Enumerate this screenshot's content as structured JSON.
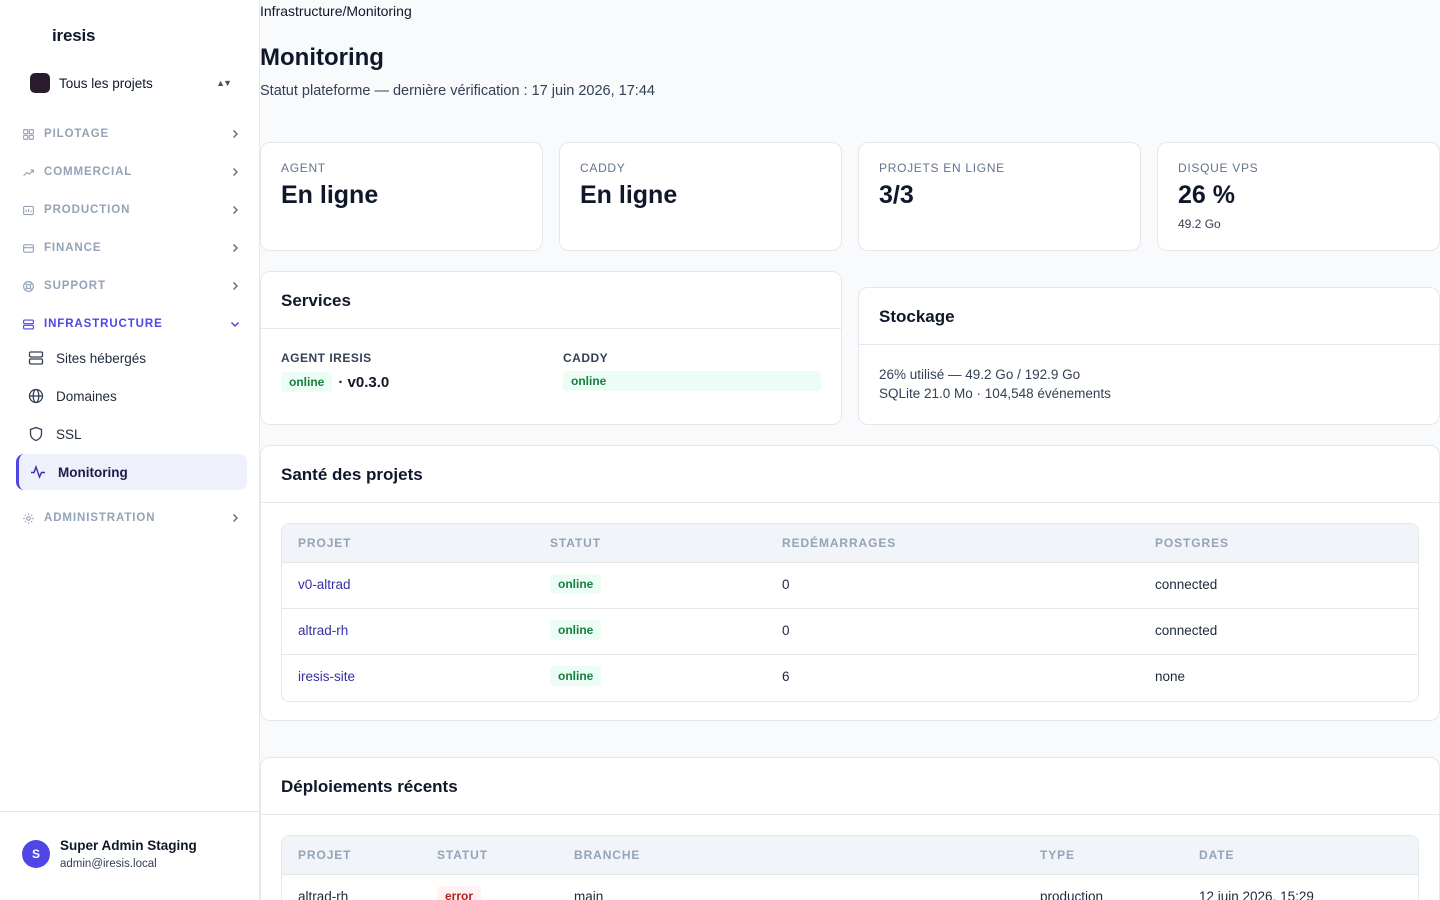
{
  "sidebar": {
    "brand": "iresis",
    "project_switcher": {
      "label": "Tous les projets"
    },
    "groups": [
      {
        "label": "PILOTAGE",
        "icon": "grid-icon"
      },
      {
        "label": "COMMERCIAL",
        "icon": "trend-up-icon"
      },
      {
        "label": "PRODUCTION",
        "icon": "folder-icon"
      },
      {
        "label": "FINANCE",
        "icon": "credit-card-icon"
      },
      {
        "label": "SUPPORT",
        "icon": "lifebuoy-icon"
      },
      {
        "label": "INFRASTRUCTURE",
        "icon": "server-icon",
        "expanded": true
      },
      {
        "label": "ADMINISTRATION",
        "icon": "gear-icon"
      }
    ],
    "infra_items": [
      {
        "label": "Sites hébergés",
        "icon": "server-icon"
      },
      {
        "label": "Domaines",
        "icon": "globe-icon"
      },
      {
        "label": "SSL",
        "icon": "shield-icon"
      },
      {
        "label": "Monitoring",
        "icon": "activity-icon",
        "active": true
      }
    ],
    "user": {
      "initial": "S",
      "name": "Super Admin Staging",
      "email": "admin@iresis.local"
    }
  },
  "breadcrumb": "Infrastructure/Monitoring",
  "page": {
    "title": "Monitoring",
    "subtitle": "Statut plateforme — dernière vérification : 17 juin 2026, 17:44"
  },
  "stats": [
    {
      "label": "AGENT",
      "value": "En ligne"
    },
    {
      "label": "CADDY",
      "value": "En ligne"
    },
    {
      "label": "PROJETS EN LIGNE",
      "value": "3/3"
    },
    {
      "label": "DISQUE VPS",
      "value": "26 %",
      "sub": "49.2 Go"
    }
  ],
  "services": {
    "title": "Services",
    "agent": {
      "label": "AGENT IRESIS",
      "status": "online",
      "version": "· v0.3.0"
    },
    "caddy": {
      "label": "CADDY",
      "status": "online"
    }
  },
  "storage": {
    "title": "Stockage",
    "line1": "26% utilisé — 49.2 Go / 192.9 Go",
    "line2": "SQLite 21.0 Mo · 104,548 événements"
  },
  "health": {
    "title": "Santé des projets",
    "columns": [
      "PROJET",
      "STATUT",
      "REDÉMARRAGES",
      "POSTGRES"
    ],
    "rows": [
      {
        "project": "v0-altrad",
        "status": "online",
        "restarts": "0",
        "postgres": "connected"
      },
      {
        "project": "altrad-rh",
        "status": "online",
        "restarts": "0",
        "postgres": "connected"
      },
      {
        "project": "iresis-site",
        "status": "online",
        "restarts": "6",
        "postgres": "none"
      }
    ]
  },
  "deployments": {
    "title": "Déploiements récents",
    "columns": [
      "PROJET",
      "STATUT",
      "BRANCHE",
      "TYPE",
      "DATE"
    ],
    "rows": [
      {
        "project": "altrad-rh",
        "status": "error",
        "branch": "main",
        "type": "production",
        "date": "12 juin 2026, 15:29"
      }
    ]
  },
  "colors": {
    "accent": "#4f46e5",
    "success": "#15803d",
    "error": "#b91c1c"
  }
}
